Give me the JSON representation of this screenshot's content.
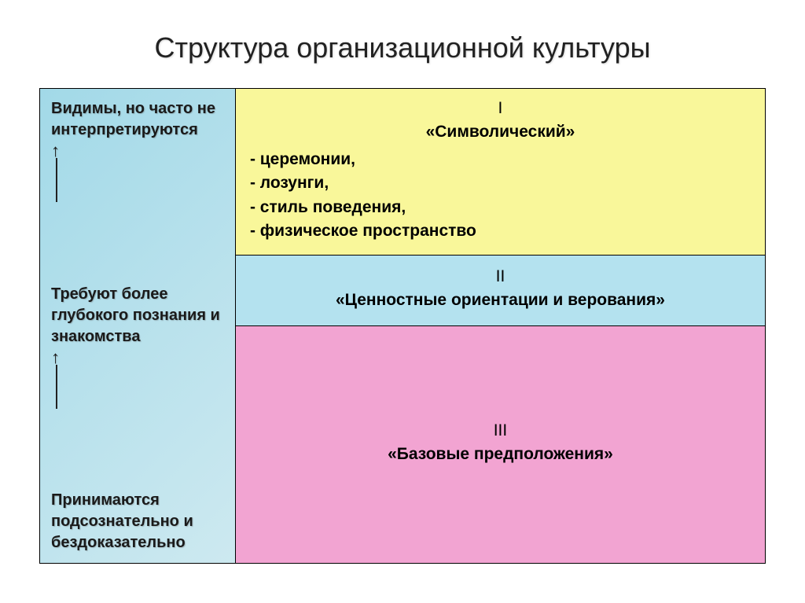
{
  "title": "Структура организационной культуры",
  "left": {
    "block1": "Видимы, но часто не интерпретируются",
    "block2": "Требуют более глубокого познания и знакомства",
    "block3": "Принимаются подсознательно и бездоказательно"
  },
  "levels": {
    "l1": {
      "num": "I",
      "name": "«Символический»",
      "bullets": [
        "- церемонии,",
        "- лозунги,",
        "- стиль поведения,",
        "- физическое пространство"
      ],
      "bg": "#f9f79a"
    },
    "l2": {
      "num": "II",
      "name": "«Ценностные ориентации и верования»",
      "bg": "#b4e2ef"
    },
    "l3": {
      "num": "III",
      "name": "«Базовые предположения»",
      "bg": "#f2a4d2"
    }
  },
  "style": {
    "title_fontsize": 36,
    "cell_fontsize": 21,
    "left_fontsize": 20,
    "border_color": "#000000",
    "left_bg_from": "#a2d9e8",
    "left_bg_to": "#cde9f0"
  }
}
